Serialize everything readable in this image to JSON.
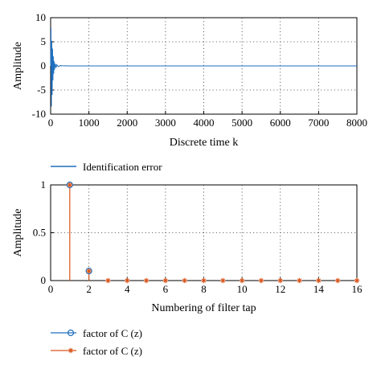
{
  "chart_data": [
    {
      "type": "line",
      "xlabel": "Discrete time k",
      "ylabel": "Amplitude",
      "xlim": [
        0,
        8000
      ],
      "ylim": [
        -10,
        10
      ],
      "xticks": [
        "0",
        "1000",
        "2000",
        "3000",
        "4000",
        "5000",
        "6000",
        "7000",
        "8000"
      ],
      "yticks": [
        "10",
        "5",
        "0",
        "-5",
        "-10"
      ],
      "grid": true,
      "legend_position": "bottom-left",
      "series": [
        {
          "name": "Identification error",
          "color": "#1f6fbf",
          "x": [
            0,
            10,
            20,
            30,
            40,
            50,
            60,
            70,
            80,
            90,
            100,
            120,
            140,
            160,
            200,
            250,
            300,
            400,
            500,
            1000,
            2000,
            4000,
            8000
          ],
          "y": [
            0,
            7.8,
            -8.4,
            5.2,
            -6.0,
            3.6,
            -3.0,
            2.0,
            -1.6,
            1.0,
            -0.8,
            0.5,
            -0.4,
            0.25,
            -0.15,
            0.08,
            0.04,
            0.02,
            0,
            0,
            0,
            0,
            0
          ]
        }
      ]
    },
    {
      "type": "stem",
      "xlabel": "Numbering of filter tap",
      "ylabel": "Amplitude",
      "xlim": [
        0,
        16
      ],
      "ylim": [
        0,
        1
      ],
      "xticks": [
        "0",
        "2",
        "4",
        "6",
        "8",
        "10",
        "12",
        "14",
        "16"
      ],
      "yticks": [
        "1",
        "0.5",
        "0"
      ],
      "grid": true,
      "legend_position": "bottom-left",
      "series": [
        {
          "name": "factor of C (z)",
          "color": "#1f6fbf",
          "marker": "circle",
          "x": [
            1,
            2,
            3,
            4,
            5,
            6,
            7,
            8,
            9,
            10,
            11,
            12,
            13,
            14,
            15,
            16
          ],
          "y": [
            1.0,
            0.1,
            0,
            0,
            0,
            0,
            0,
            0,
            0,
            0,
            0,
            0,
            0,
            0,
            0,
            0
          ]
        },
        {
          "name": "factor of C (z)",
          "color": "#d9541a",
          "marker": "asterisk",
          "x": [
            1,
            2,
            3,
            4,
            5,
            6,
            7,
            8,
            9,
            10,
            11,
            12,
            13,
            14,
            15,
            16
          ],
          "y": [
            1.0,
            0.1,
            0,
            0,
            0,
            0,
            0,
            0,
            0,
            0,
            0,
            0,
            0,
            0,
            0,
            0
          ]
        }
      ]
    }
  ]
}
